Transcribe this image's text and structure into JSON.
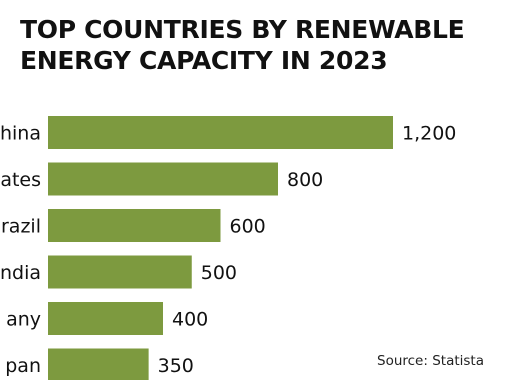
{
  "chart_data": {
    "type": "bar",
    "orientation": "horizontal",
    "title": "TOP COUNTRIES BY RENEWABLE ENERGY CAPACITY IN 2023",
    "categories": [
      "China",
      "United States",
      "Brazil",
      "India",
      "Germany",
      "Japan"
    ],
    "visible_category_labels": [
      "hina",
      "ates",
      "razil",
      "ndia",
      "any",
      "pan"
    ],
    "values": [
      1200,
      800,
      600,
      500,
      400,
      350
    ],
    "value_labels": [
      "1,200",
      "800",
      "600",
      "500",
      "400",
      "350"
    ],
    "xlim": [
      0,
      1200
    ],
    "grid": false,
    "legend": "none",
    "bar_color": "#7d9a3f",
    "source": "Source: Statista"
  }
}
